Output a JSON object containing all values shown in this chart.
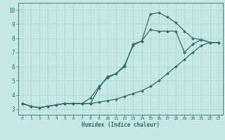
{
  "xlabel": "Humidex (Indice chaleur)",
  "bg_color": "#c5e8e5",
  "line_color": "#2d7068",
  "grid_color": "#a8d4d0",
  "xlim": [
    -0.5,
    23.5
  ],
  "ylim": [
    2.6,
    10.5
  ],
  "xticks": [
    0,
    1,
    2,
    3,
    4,
    5,
    6,
    7,
    8,
    9,
    10,
    11,
    12,
    13,
    14,
    15,
    16,
    17,
    18,
    19,
    20,
    21,
    22,
    23
  ],
  "yticks": [
    3,
    4,
    5,
    6,
    7,
    8,
    9,
    10
  ],
  "line1_y": [
    3.4,
    3.2,
    3.1,
    3.2,
    3.3,
    3.4,
    3.4,
    3.4,
    3.4,
    4.5,
    5.3,
    5.5,
    6.0,
    7.6,
    7.8,
    9.7,
    9.8,
    9.5,
    9.1,
    8.5,
    8.0,
    7.9,
    7.7,
    7.7
  ],
  "line2_y": [
    3.4,
    3.2,
    3.1,
    3.2,
    3.3,
    3.4,
    3.4,
    3.4,
    3.8,
    4.6,
    5.2,
    5.5,
    6.1,
    7.5,
    7.8,
    8.6,
    8.5,
    8.5,
    8.5,
    7.0,
    7.6,
    7.9,
    7.7,
    7.7
  ],
  "line3_y": [
    3.4,
    3.2,
    3.1,
    3.2,
    3.3,
    3.4,
    3.4,
    3.4,
    3.4,
    3.5,
    3.6,
    3.7,
    3.9,
    4.1,
    4.3,
    4.6,
    5.0,
    5.5,
    6.0,
    6.5,
    7.0,
    7.5,
    7.7,
    7.7
  ]
}
